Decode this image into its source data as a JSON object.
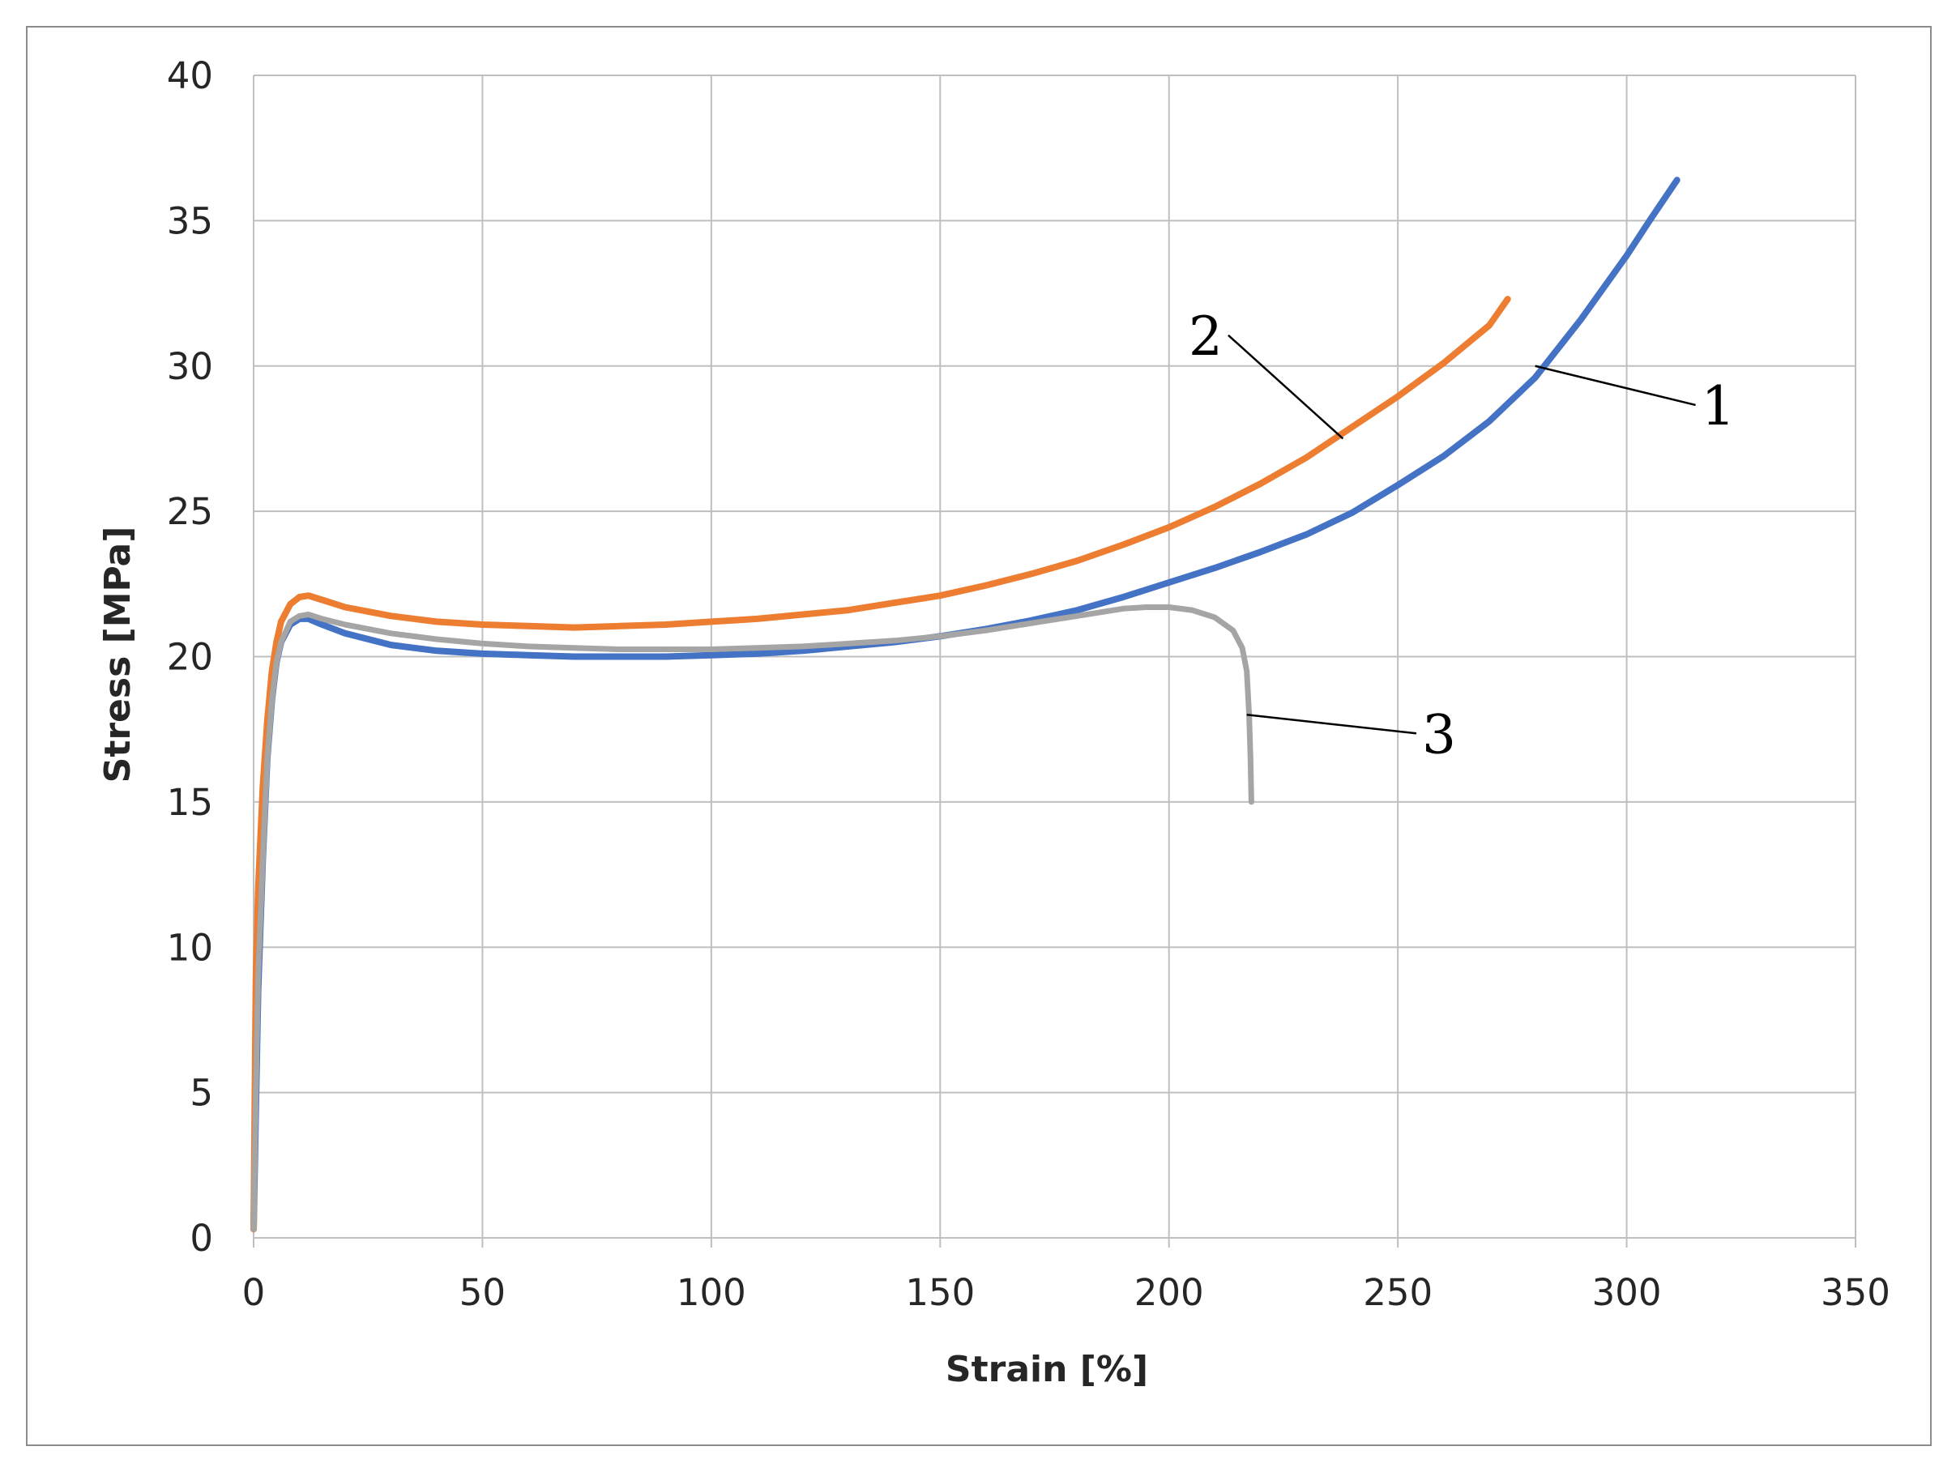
{
  "chart_data": {
    "type": "line",
    "title": "",
    "xlabel": "Strain [%]",
    "ylabel": "Stress [MPa]",
    "xlim": [
      0,
      350
    ],
    "ylim": [
      0,
      40
    ],
    "xticks": [
      0,
      50,
      100,
      150,
      200,
      250,
      300,
      350
    ],
    "yticks": [
      0,
      5,
      10,
      15,
      20,
      25,
      30,
      35,
      40
    ],
    "grid": true,
    "legend": "none",
    "series": [
      {
        "label": "1",
        "color": "#4472c4",
        "x": [
          0,
          0.5,
          1,
          2,
          3,
          4,
          5,
          6,
          8,
          10,
          12,
          15,
          20,
          30,
          40,
          50,
          60,
          70,
          80,
          90,
          100,
          110,
          120,
          130,
          140,
          150,
          160,
          170,
          180,
          190,
          200,
          210,
          220,
          230,
          240,
          250,
          260,
          270,
          280,
          290,
          300,
          305,
          311
        ],
        "y": [
          0.3,
          4.5,
          8.5,
          13,
          16.5,
          18.5,
          19.8,
          20.5,
          21.1,
          21.3,
          21.3,
          21.1,
          20.8,
          20.4,
          20.2,
          20.1,
          20.05,
          20.0,
          20.0,
          20.0,
          20.05,
          20.1,
          20.2,
          20.35,
          20.5,
          20.7,
          20.95,
          21.25,
          21.6,
          22.05,
          22.55,
          23.05,
          23.6,
          24.2,
          24.95,
          25.9,
          26.9,
          28.1,
          29.6,
          31.6,
          33.8,
          35.0,
          36.4
        ]
      },
      {
        "label": "2",
        "color": "#ed7d31",
        "x": [
          0,
          0.5,
          1,
          2,
          3,
          4,
          5,
          6,
          8,
          10,
          12,
          15,
          20,
          30,
          40,
          50,
          60,
          70,
          80,
          90,
          100,
          110,
          120,
          130,
          140,
          150,
          160,
          170,
          180,
          190,
          200,
          210,
          220,
          230,
          240,
          250,
          260,
          270,
          274
        ],
        "y": [
          0.3,
          9,
          12,
          15.5,
          17.8,
          19.5,
          20.5,
          21.2,
          21.8,
          22.05,
          22.1,
          21.95,
          21.7,
          21.4,
          21.2,
          21.1,
          21.05,
          21.0,
          21.05,
          21.1,
          21.2,
          21.3,
          21.45,
          21.6,
          21.85,
          22.1,
          22.45,
          22.85,
          23.3,
          23.85,
          24.45,
          25.15,
          25.95,
          26.85,
          27.9,
          28.95,
          30.1,
          31.4,
          32.3
        ]
      },
      {
        "label": "3",
        "color": "#a5a5a5",
        "x": [
          0,
          0.5,
          1,
          2,
          3,
          4,
          5,
          6,
          8,
          10,
          12,
          15,
          20,
          30,
          40,
          50,
          60,
          70,
          80,
          90,
          100,
          110,
          120,
          130,
          140,
          150,
          160,
          170,
          180,
          190,
          195,
          200,
          205,
          210,
          214,
          216,
          217,
          217.5,
          217.8,
          218
        ],
        "y": [
          0.3,
          5,
          9,
          13,
          16.5,
          18.5,
          19.8,
          20.5,
          21.2,
          21.4,
          21.45,
          21.3,
          21.1,
          20.8,
          20.6,
          20.45,
          20.35,
          20.3,
          20.25,
          20.25,
          20.25,
          20.3,
          20.35,
          20.45,
          20.55,
          20.7,
          20.9,
          21.15,
          21.4,
          21.65,
          21.7,
          21.7,
          21.6,
          21.35,
          20.9,
          20.3,
          19.5,
          18.0,
          16.5,
          15.0
        ]
      }
    ],
    "annotations": [
      {
        "text": "1",
        "point_x": 280,
        "point_y": 30.0,
        "text_x": 320,
        "text_y": 28.1
      },
      {
        "text": "2",
        "point_x": 238,
        "point_y": 27.5,
        "text_x": 208,
        "text_y": 30.5
      },
      {
        "text": "3",
        "point_x": 217,
        "point_y": 18.0,
        "text_x": 259,
        "text_y": 16.8
      }
    ]
  }
}
